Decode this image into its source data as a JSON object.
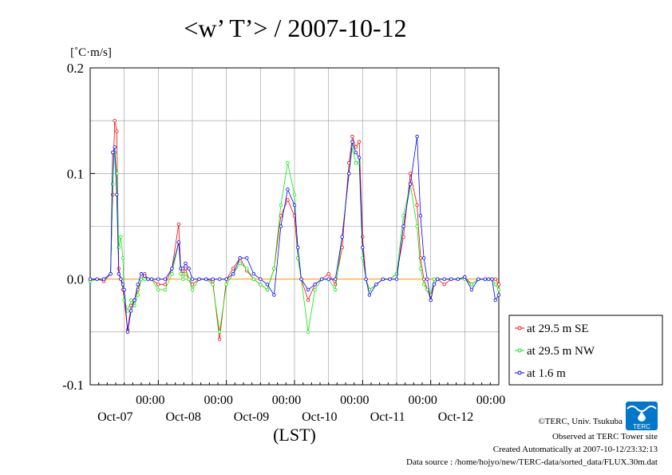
{
  "chart_data": {
    "type": "line",
    "title": "<w’ T’> / 2007-10-12",
    "unit_label": "[˚C·m/s]",
    "xlabel": "(LST)",
    "ylim": [
      -0.1,
      0.2
    ],
    "y_ticks": [
      "-0.1",
      "0.0",
      "0.1",
      "0.2"
    ],
    "y_tick_values": [
      -0.1,
      0.0,
      0.1,
      0.2
    ],
    "x_range_days": [
      0,
      6
    ],
    "x_ticks": [
      {
        "day": 1,
        "time": "00:00",
        "date": "Oct-07"
      },
      {
        "day": 2,
        "time": "00:00",
        "date": "Oct-08"
      },
      {
        "day": 3,
        "time": "00:00",
        "date": "Oct-09"
      },
      {
        "day": 4,
        "time": "00:00",
        "date": "Oct-10"
      },
      {
        "day": 5,
        "time": "00:00",
        "date": "Oct-11"
      },
      {
        "day": 6,
        "time": "00:00",
        "date": "Oct-12"
      }
    ],
    "grid": true,
    "legend_position": "right",
    "series": [
      {
        "name": "at 29.5 m SE",
        "color": "#ff0000",
        "x": [
          0.0,
          0.1,
          0.2,
          0.3,
          0.33,
          0.36,
          0.39,
          0.42,
          0.45,
          0.48,
          0.5,
          0.55,
          0.6,
          0.65,
          0.7,
          0.75,
          0.8,
          0.85,
          0.9,
          1.0,
          1.1,
          1.2,
          1.3,
          1.33,
          1.36,
          1.4,
          1.45,
          1.5,
          1.6,
          1.7,
          1.8,
          1.9,
          2.0,
          2.1,
          2.2,
          2.3,
          2.4,
          2.5,
          2.6,
          2.7,
          2.8,
          2.9,
          3.0,
          3.05,
          3.1,
          3.2,
          3.3,
          3.4,
          3.5,
          3.6,
          3.7,
          3.8,
          3.85,
          3.9,
          3.95,
          4.0,
          4.05,
          4.1,
          4.2,
          4.3,
          4.4,
          4.5,
          4.6,
          4.7,
          4.8,
          4.85,
          4.9,
          4.95,
          5.0,
          5.05,
          5.1,
          5.2,
          5.3,
          5.4,
          5.5,
          5.6,
          5.7,
          5.8,
          5.85,
          5.9,
          5.95,
          6.0
        ],
        "y": [
          0.0,
          0.0,
          -0.002,
          0.005,
          0.08,
          0.15,
          0.14,
          0.01,
          0.0,
          -0.01,
          -0.02,
          -0.048,
          -0.025,
          -0.02,
          -0.01,
          0.0,
          0.005,
          0.0,
          0.0,
          -0.005,
          -0.005,
          0.01,
          0.052,
          0.01,
          0.005,
          0.01,
          0.0,
          -0.005,
          0.0,
          0.0,
          -0.002,
          -0.057,
          0.0,
          0.01,
          0.02,
          0.008,
          0.0,
          -0.005,
          -0.01,
          0.01,
          0.06,
          0.075,
          0.06,
          0.02,
          0.0,
          -0.02,
          -0.005,
          0.0,
          0.005,
          -0.005,
          0.03,
          0.11,
          0.135,
          0.125,
          0.13,
          0.04,
          0.0,
          -0.01,
          -0.005,
          0.0,
          0.0,
          0.005,
          0.04,
          0.1,
          0.07,
          0.02,
          0.0,
          -0.01,
          -0.02,
          0.0,
          0.0,
          -0.005,
          0.0,
          0.0,
          0.002,
          -0.005,
          0.0,
          0.0,
          0.0,
          0.0,
          0.0,
          -0.005
        ]
      },
      {
        "name": "at 29.5 m NW",
        "color": "#00ee00",
        "x": [
          0.0,
          0.1,
          0.2,
          0.3,
          0.33,
          0.36,
          0.39,
          0.42,
          0.45,
          0.48,
          0.5,
          0.55,
          0.6,
          0.65,
          0.7,
          0.75,
          0.8,
          0.85,
          0.9,
          1.0,
          1.1,
          1.2,
          1.3,
          1.33,
          1.36,
          1.4,
          1.45,
          1.5,
          1.6,
          1.7,
          1.8,
          1.9,
          2.0,
          2.1,
          2.2,
          2.3,
          2.4,
          2.5,
          2.6,
          2.7,
          2.8,
          2.9,
          3.0,
          3.05,
          3.1,
          3.2,
          3.3,
          3.4,
          3.5,
          3.6,
          3.7,
          3.8,
          3.85,
          3.9,
          3.95,
          4.0,
          4.05,
          4.1,
          4.2,
          4.3,
          4.4,
          4.5,
          4.6,
          4.7,
          4.8,
          4.85,
          4.9,
          4.95,
          5.0,
          5.05,
          5.1,
          5.2,
          5.3,
          5.4,
          5.5,
          5.6,
          5.7,
          5.8,
          5.85,
          5.9,
          5.95,
          6.0
        ],
        "y": [
          -0.002,
          0.0,
          0.0,
          0.005,
          0.09,
          0.12,
          0.1,
          0.03,
          0.04,
          0.02,
          -0.02,
          -0.03,
          -0.02,
          -0.025,
          -0.015,
          0.0,
          0.0,
          0.0,
          0.0,
          -0.01,
          -0.01,
          0.005,
          0.035,
          0.005,
          0.0,
          0.005,
          0.0,
          -0.01,
          0.0,
          0.0,
          -0.005,
          -0.05,
          -0.005,
          0.005,
          0.015,
          0.01,
          0.0,
          -0.005,
          -0.01,
          0.01,
          0.07,
          0.11,
          0.08,
          0.02,
          0.0,
          -0.05,
          -0.01,
          0.0,
          0.0,
          -0.01,
          0.04,
          0.1,
          0.125,
          0.11,
          0.11,
          0.02,
          0.0,
          -0.01,
          -0.005,
          0.0,
          0.0,
          0.005,
          0.06,
          0.09,
          0.05,
          0.01,
          -0.005,
          -0.01,
          -0.015,
          0.0,
          0.0,
          0.0,
          0.0,
          0.0,
          0.0,
          -0.005,
          0.0,
          0.0,
          0.0,
          0.0,
          -0.005,
          -0.01
        ]
      },
      {
        "name": "at 1.6 m",
        "color": "#0000ff",
        "x": [
          0.0,
          0.1,
          0.2,
          0.3,
          0.33,
          0.36,
          0.39,
          0.42,
          0.45,
          0.48,
          0.5,
          0.55,
          0.6,
          0.65,
          0.7,
          0.75,
          0.8,
          0.85,
          0.9,
          1.0,
          1.1,
          1.2,
          1.3,
          1.33,
          1.36,
          1.4,
          1.45,
          1.5,
          1.6,
          1.7,
          1.8,
          1.9,
          2.0,
          2.1,
          2.2,
          2.3,
          2.4,
          2.5,
          2.6,
          2.7,
          2.8,
          2.9,
          3.0,
          3.05,
          3.1,
          3.2,
          3.3,
          3.4,
          3.5,
          3.6,
          3.7,
          3.8,
          3.85,
          3.9,
          3.95,
          4.0,
          4.05,
          4.1,
          4.2,
          4.3,
          4.4,
          4.5,
          4.6,
          4.7,
          4.8,
          4.85,
          4.9,
          4.95,
          5.0,
          5.05,
          5.1,
          5.2,
          5.3,
          5.4,
          5.5,
          5.6,
          5.7,
          5.8,
          5.85,
          5.9,
          5.95,
          6.0
        ],
        "y": [
          0.0,
          0.0,
          0.0,
          0.005,
          0.12,
          0.125,
          0.08,
          0.005,
          0.0,
          -0.005,
          -0.01,
          -0.05,
          -0.03,
          -0.02,
          -0.005,
          0.005,
          0.003,
          0.0,
          0.0,
          0.0,
          0.0,
          0.01,
          0.035,
          0.01,
          0.01,
          0.015,
          0.01,
          0.0,
          0.0,
          0.0,
          0.0,
          0.0,
          0.0,
          0.005,
          0.02,
          0.02,
          0.005,
          0.0,
          -0.005,
          -0.015,
          0.05,
          0.085,
          0.07,
          0.03,
          0.0,
          -0.01,
          -0.005,
          0.0,
          0.0,
          0.0,
          0.04,
          0.1,
          0.13,
          0.12,
          0.115,
          0.03,
          0.0,
          -0.015,
          -0.005,
          0.0,
          0.0,
          0.0,
          0.05,
          0.09,
          0.135,
          0.06,
          0.02,
          0.0,
          -0.02,
          -0.005,
          0.0,
          0.0,
          0.0,
          0.0,
          0.002,
          -0.01,
          0.0,
          0.0,
          0.0,
          0.0,
          -0.02,
          -0.015
        ]
      }
    ]
  },
  "footer": {
    "copyright": "©TERC, Univ. Tsukuba",
    "observed": "Observed at TERC Tower site",
    "created": "Created Automatically at 2007-10-12/23:32:13",
    "source": "Data source : /home/hojyo/new/TERC-data/sorted_data/FLUX.30m.dat"
  },
  "logo": {
    "text": "TERC",
    "color": "#0077c8"
  }
}
